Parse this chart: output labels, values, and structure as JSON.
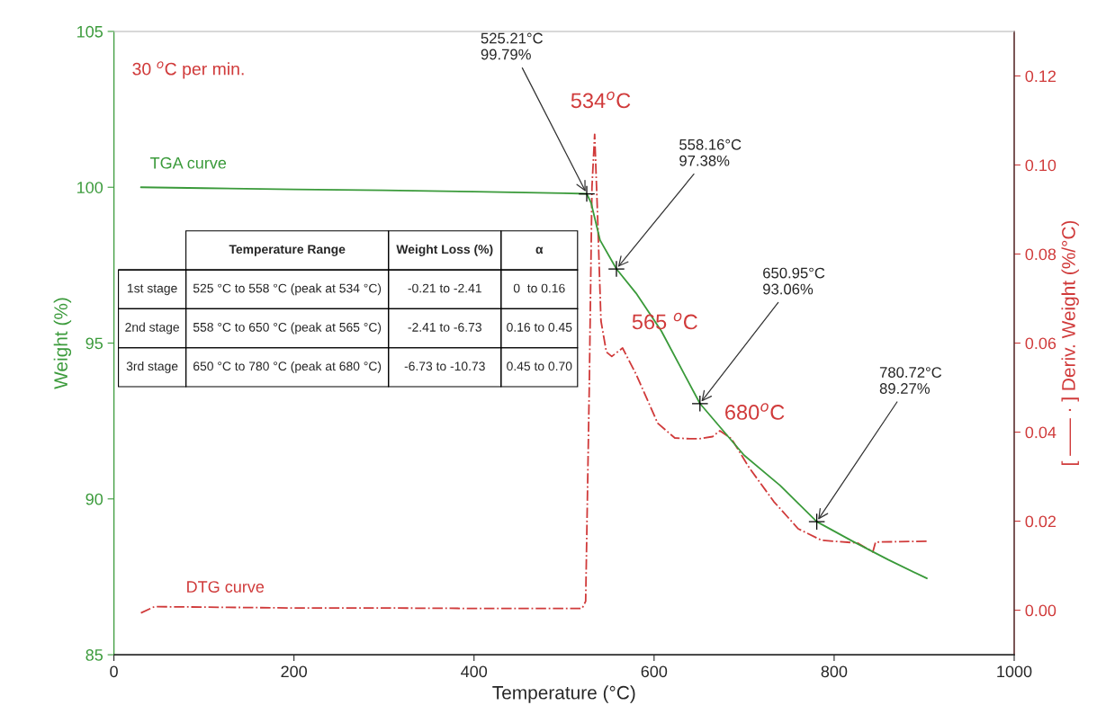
{
  "chart_data": {
    "type": "line",
    "xlabel": "Temperature (°C)",
    "ylabel": "Weight (%)",
    "y2label": "[ —— · ] Deriv. Weight (%/°C)",
    "xlim": [
      0,
      1000
    ],
    "xticks": [
      0,
      200,
      400,
      600,
      800,
      1000
    ],
    "ylim": [
      85,
      105
    ],
    "yticks": [
      85,
      90,
      95,
      100,
      105
    ],
    "y2lim": [
      -0.01,
      0.13
    ],
    "y2ticks": [
      {
        "value": 0,
        "label": "0.00"
      },
      {
        "value": 0.02,
        "label": "0.02"
      },
      {
        "value": 0.04,
        "label": "0.04"
      },
      {
        "value": 0.06,
        "label": "0.06"
      },
      {
        "value": 0.08,
        "label": "0.08"
      },
      {
        "value": 0.1,
        "label": "0.10"
      },
      {
        "value": 0.12,
        "label": "0.12"
      }
    ],
    "grid": false,
    "legend": false,
    "series": [
      {
        "name": "TGA curve",
        "color": "#3a9a3a",
        "line_style": "solid",
        "x": [
          30,
          100,
          200,
          300,
          400,
          500,
          525.21,
          530,
          540,
          558.16,
          580,
          608,
          650.95,
          700,
          740,
          780.72,
          820,
          860,
          903
        ],
        "values": [
          100.0,
          99.97,
          99.93,
          99.9,
          99.86,
          99.81,
          99.79,
          99.5,
          98.3,
          97.38,
          96.6,
          95.39,
          93.06,
          91.4,
          90.43,
          89.27,
          88.65,
          88.05,
          87.45
        ]
      },
      {
        "name": "DTG curve",
        "color": "#d03a3a",
        "line_style": "dashdot",
        "axis": "y2",
        "x": [
          30,
          45,
          100,
          200,
          300,
          400,
          500,
          520,
          524,
          528,
          531,
          534,
          537,
          541,
          547,
          553,
          565,
          580,
          604,
          623,
          640,
          650,
          665,
          673,
          686,
          706,
          733,
          760,
          786,
          826,
          843,
          846,
          903
        ],
        "values": [
          -0.0006,
          0.0008,
          0.0007,
          0.0005,
          0.0005,
          0.0004,
          0.0004,
          0.0004,
          0.002,
          0.05,
          0.095,
          0.1069,
          0.09,
          0.065,
          0.058,
          0.057,
          0.0589,
          0.053,
          0.042,
          0.0387,
          0.0385,
          0.0385,
          0.039,
          0.0403,
          0.0385,
          0.0319,
          0.0244,
          0.0183,
          0.0157,
          0.0151,
          0.0131,
          0.0153,
          0.0155
        ]
      },
      {
        "type": "scatter",
        "marker": "cross",
        "color": "#000000",
        "x": [
          525.21,
          558.16,
          650.95,
          780.72
        ],
        "values": [
          99.79,
          97.38,
          93.06,
          89.27
        ]
      }
    ],
    "annotations": [
      "30 $^{o}$C per min.",
      {
        "text": "525.21°C\n99.79%",
        "x": 525.21,
        "y": 99.79
      },
      {
        "text": "558.16°C\n97.38%",
        "x": 558.16,
        "y": 97.38
      },
      {
        "text": "650.95°C\n93.06%",
        "x": 650.95,
        "y": 93.06
      },
      {
        "text": "780.72°C\n89.27%",
        "x": 780.72,
        "y": 89.27
      },
      "534$^{o}$C",
      "565 $^{o}$C",
      "680$^{o}$C",
      "Temperature Range",
      "Weight Loss (%)",
      "α",
      "1st stage",
      "525 °C to 558 °C (peak at 534 °C)",
      "-0.21 to -2.41",
      "0  to 0.16",
      "2nd stage",
      "558 °C to 650 °C (peak at 565 °C)",
      "-2.41 to -6.73",
      "0.16 to 0.45",
      "3rd stage",
      "650 °C to 780 °C (peak at 680 °C)",
      "-6.73 to -10.73",
      "0.45 to 0.70"
    ]
  }
}
